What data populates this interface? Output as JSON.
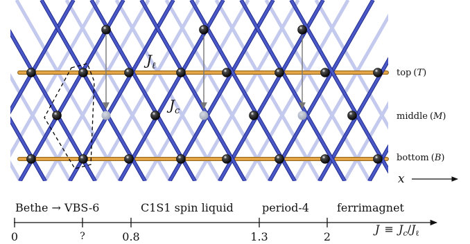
{
  "lattice": {
    "couplings": {
      "leg": "J",
      "leg_sub": "ℓ",
      "rung": "J",
      "rung_sub": "c"
    },
    "row_labels": [
      {
        "name": "top",
        "symbol": "T"
      },
      {
        "name": "middle",
        "symbol": "M"
      },
      {
        "name": "bottom",
        "symbol": "B"
      }
    ],
    "axis_label": "x",
    "colors": {
      "leg_bond": "#e9a94a",
      "diagonal_bond": "#4a58c8",
      "faded_bond": "#c4c9ee",
      "site": "#0d0d0d",
      "ghost_site": "#a8aec0",
      "arrow": "#777777",
      "box": "#000000"
    }
  },
  "phase_diagram": {
    "phases": [
      "Bethe → VBS-6",
      "C1S1 spin liquid",
      "period-4",
      "ferrimagnet"
    ],
    "ticks": [
      "0",
      "?",
      "0.8",
      "1.3",
      "2"
    ],
    "axis_label": {
      "lhs": "J",
      "equiv": "≡",
      "num": "J",
      "num_sub": "c",
      "slash": "/",
      "den": "J",
      "den_sub": "ℓ"
    }
  }
}
